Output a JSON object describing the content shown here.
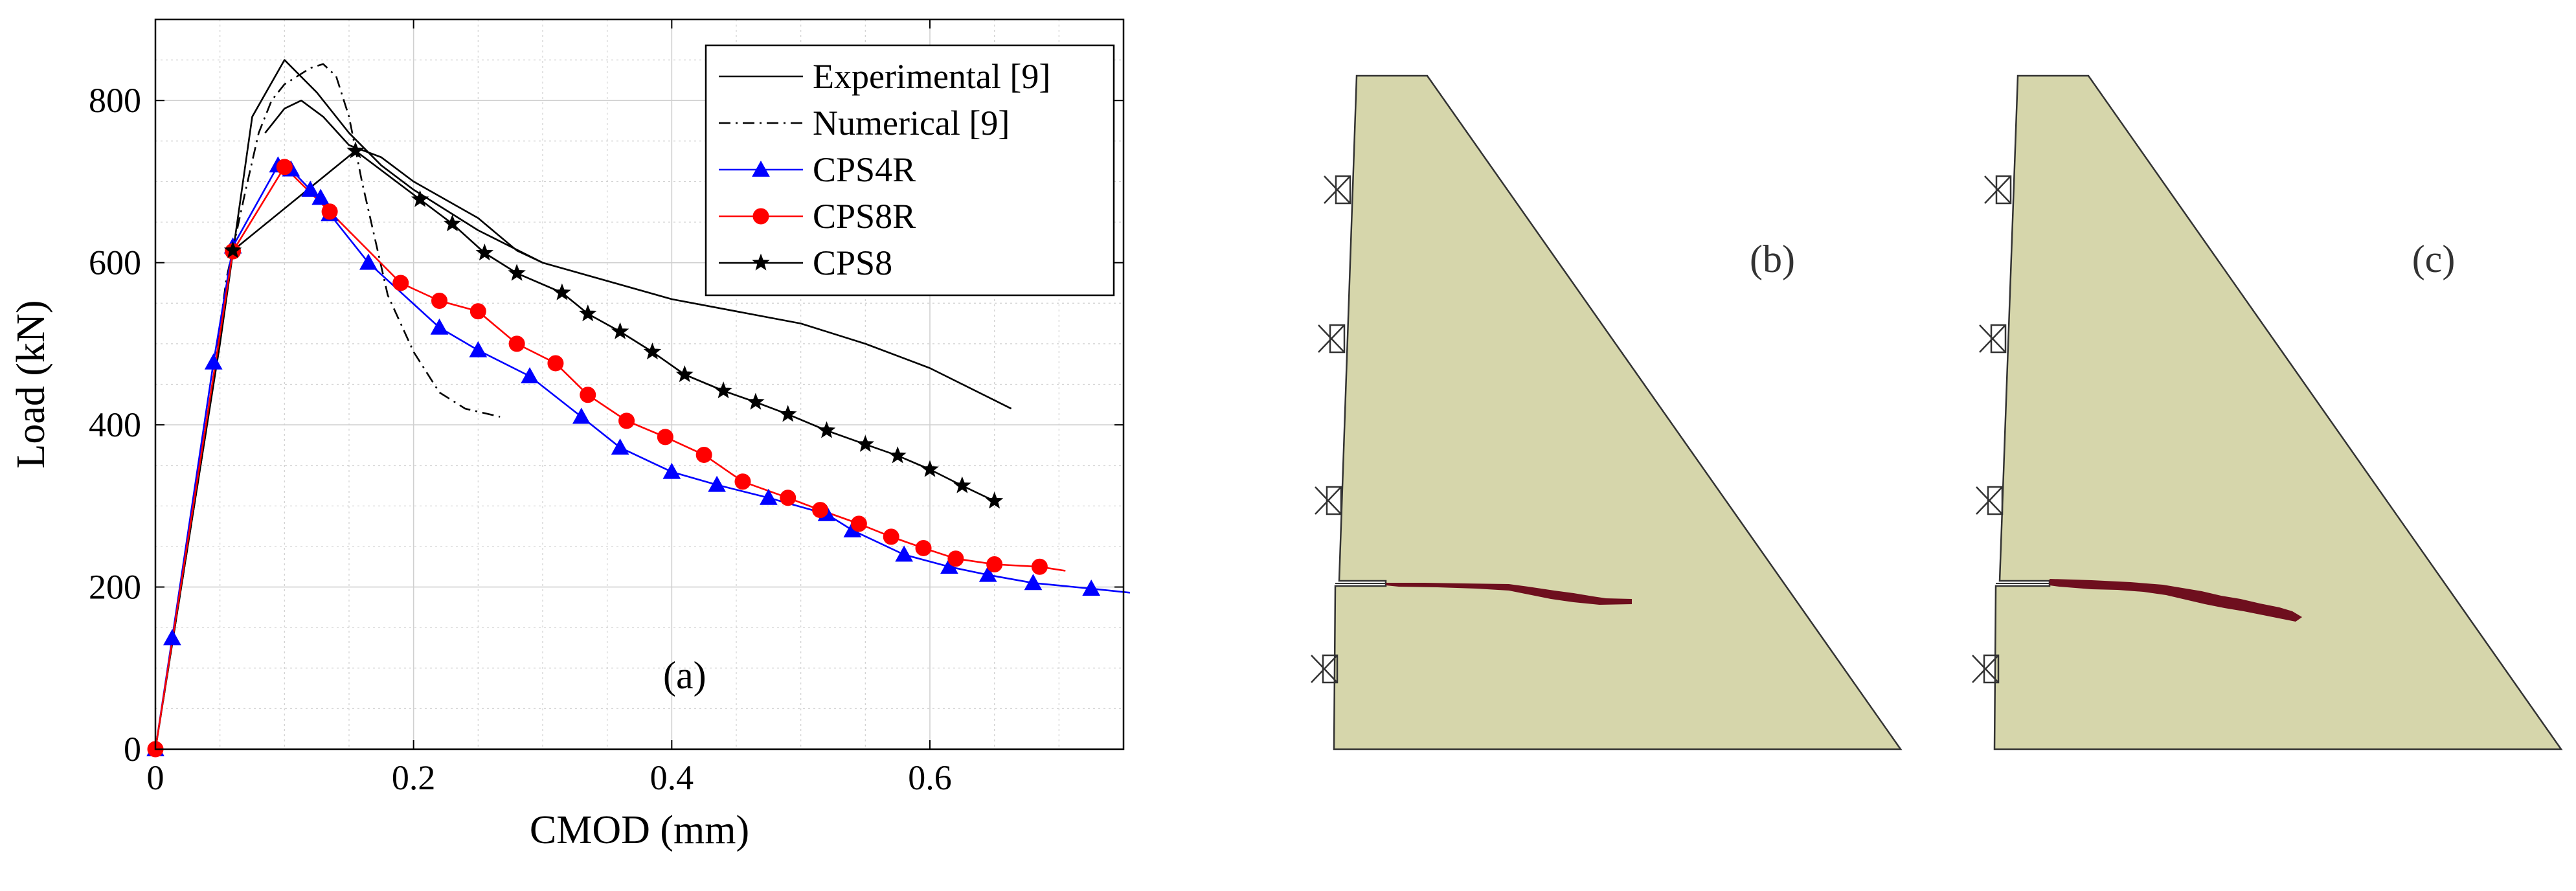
{
  "chart_data": {
    "type": "line",
    "panel_label": "(a)",
    "xlabel": "CMOD (mm)",
    "ylabel": "Load (kN)",
    "xlim": [
      0,
      0.75
    ],
    "ylim": [
      0,
      900
    ],
    "grid": true,
    "minor_grid": true,
    "legend_position": "top-right",
    "x_major_ticks": [
      0,
      0.2,
      0.4,
      0.6
    ],
    "x_tick_labels": [
      "0",
      "0.2",
      "0.4",
      "0.6"
    ],
    "y_major_ticks": [
      0,
      200,
      400,
      600,
      800
    ],
    "y_tick_labels": [
      "0",
      "200",
      "400",
      "600",
      "800"
    ],
    "series": [
      {
        "name": "Experimental [9]",
        "color": "#000000",
        "dash": "solid",
        "marker": "none",
        "segments": [
          [
            [
              0,
              0
            ],
            [
              0.05,
              500
            ],
            [
              0.075,
              780
            ],
            [
              0.1,
              850
            ],
            [
              0.125,
              810
            ],
            [
              0.15,
              760
            ],
            [
              0.175,
              720
            ],
            [
              0.2,
              690
            ],
            [
              0.25,
              640
            ],
            [
              0.3,
              600
            ],
            [
              0.4,
              555
            ],
            [
              0.5,
              525
            ],
            [
              0.55,
              500
            ],
            [
              0.6,
              470
            ],
            [
              0.663,
              420
            ]
          ],
          [
            [
              0.085,
              760
            ],
            [
              0.1,
              790
            ],
            [
              0.113,
              800
            ],
            [
              0.13,
              780
            ],
            [
              0.15,
              745
            ],
            [
              0.175,
              730
            ],
            [
              0.2,
              700
            ],
            [
              0.25,
              655
            ],
            [
              0.28,
              615
            ],
            [
              0.3,
              600
            ]
          ]
        ]
      },
      {
        "name": "Numerical [9]",
        "color": "#000000",
        "dash": "dash-dot",
        "marker": "none",
        "segments": [
          [
            [
              0,
              0
            ],
            [
              0.02,
              200
            ],
            [
              0.04,
              400
            ],
            [
              0.055,
              580
            ],
            [
              0.07,
              690
            ],
            [
              0.08,
              760
            ],
            [
              0.09,
              800
            ],
            [
              0.1,
              820
            ],
            [
              0.11,
              830
            ],
            [
              0.12,
              840
            ],
            [
              0.13,
              845
            ],
            [
              0.14,
              830
            ],
            [
              0.15,
              780
            ],
            [
              0.16,
              700
            ],
            [
              0.17,
              630
            ],
            [
              0.18,
              560
            ],
            [
              0.2,
              490
            ],
            [
              0.22,
              440
            ],
            [
              0.24,
              420
            ],
            [
              0.267,
              410
            ]
          ]
        ]
      },
      {
        "name": "CPS4R",
        "color": "#0000ff",
        "dash": "solid",
        "marker": "triangle",
        "points": [
          [
            0,
            0
          ],
          [
            0.013,
            137
          ],
          [
            0.045,
            477
          ],
          [
            0.06,
            620
          ],
          [
            0.095,
            720
          ],
          [
            0.105,
            715
          ],
          [
            0.12,
            690
          ],
          [
            0.128,
            680
          ],
          [
            0.135,
            660
          ],
          [
            0.165,
            600
          ],
          [
            0.22,
            520
          ],
          [
            0.25,
            492
          ],
          [
            0.29,
            460
          ],
          [
            0.33,
            410
          ],
          [
            0.36,
            372
          ],
          [
            0.4,
            342
          ],
          [
            0.435,
            326
          ],
          [
            0.475,
            310
          ],
          [
            0.52,
            290
          ],
          [
            0.54,
            270
          ],
          [
            0.58,
            240
          ],
          [
            0.615,
            225
          ],
          [
            0.645,
            215
          ],
          [
            0.68,
            205
          ],
          [
            0.725,
            198
          ],
          [
            0.755,
            193
          ]
        ],
        "marker_points": [
          [
            0,
            0
          ],
          [
            0.013,
            137
          ],
          [
            0.045,
            477
          ],
          [
            0.06,
            620
          ],
          [
            0.095,
            720
          ],
          [
            0.105,
            715
          ],
          [
            0.12,
            690
          ],
          [
            0.128,
            680
          ],
          [
            0.135,
            660
          ],
          [
            0.165,
            600
          ],
          [
            0.22,
            520
          ],
          [
            0.25,
            492
          ],
          [
            0.29,
            460
          ],
          [
            0.33,
            410
          ],
          [
            0.36,
            372
          ],
          [
            0.4,
            342
          ],
          [
            0.435,
            326
          ],
          [
            0.475,
            310
          ],
          [
            0.52,
            290
          ],
          [
            0.54,
            270
          ],
          [
            0.58,
            240
          ],
          [
            0.615,
            225
          ],
          [
            0.645,
            215
          ],
          [
            0.68,
            205
          ],
          [
            0.725,
            198
          ]
        ]
      },
      {
        "name": "CPS8R",
        "color": "#ff0000",
        "dash": "solid",
        "marker": "circle",
        "points": [
          [
            0,
            0
          ],
          [
            0.06,
            614
          ],
          [
            0.1,
            718
          ],
          [
            0.135,
            663
          ],
          [
            0.19,
            575
          ],
          [
            0.22,
            553
          ],
          [
            0.25,
            540
          ],
          [
            0.28,
            500
          ],
          [
            0.31,
            476
          ],
          [
            0.335,
            437
          ],
          [
            0.365,
            405
          ],
          [
            0.395,
            385
          ],
          [
            0.425,
            363
          ],
          [
            0.455,
            330
          ],
          [
            0.49,
            310
          ],
          [
            0.515,
            295
          ],
          [
            0.545,
            278
          ],
          [
            0.57,
            262
          ],
          [
            0.595,
            248
          ],
          [
            0.62,
            235
          ],
          [
            0.65,
            228
          ],
          [
            0.685,
            225
          ],
          [
            0.705,
            220
          ]
        ],
        "marker_points": [
          [
            0,
            0
          ],
          [
            0.06,
            614
          ],
          [
            0.1,
            718
          ],
          [
            0.135,
            663
          ],
          [
            0.19,
            575
          ],
          [
            0.22,
            553
          ],
          [
            0.25,
            540
          ],
          [
            0.28,
            500
          ],
          [
            0.31,
            476
          ],
          [
            0.335,
            437
          ],
          [
            0.365,
            405
          ],
          [
            0.395,
            385
          ],
          [
            0.425,
            363
          ],
          [
            0.455,
            330
          ],
          [
            0.49,
            310
          ],
          [
            0.515,
            295
          ],
          [
            0.545,
            278
          ],
          [
            0.57,
            262
          ],
          [
            0.595,
            248
          ],
          [
            0.62,
            235
          ],
          [
            0.65,
            228
          ],
          [
            0.685,
            225
          ]
        ]
      },
      {
        "name": "CPS8",
        "color": "#000000",
        "dash": "solid",
        "marker": "star",
        "points": [
          [
            0.06,
            615
          ],
          [
            0.155,
            738
          ],
          [
            0.205,
            678
          ],
          [
            0.23,
            648
          ],
          [
            0.255,
            612
          ],
          [
            0.28,
            587
          ],
          [
            0.315,
            563
          ],
          [
            0.335,
            537
          ],
          [
            0.36,
            515
          ],
          [
            0.385,
            490
          ],
          [
            0.41,
            462
          ],
          [
            0.44,
            442
          ],
          [
            0.465,
            428
          ],
          [
            0.49,
            413
          ],
          [
            0.52,
            393
          ],
          [
            0.55,
            376
          ],
          [
            0.575,
            362
          ],
          [
            0.6,
            345
          ],
          [
            0.625,
            325
          ],
          [
            0.65,
            306
          ]
        ],
        "marker_points": [
          [
            0.06,
            615
          ],
          [
            0.155,
            738
          ],
          [
            0.205,
            678
          ],
          [
            0.23,
            648
          ],
          [
            0.255,
            612
          ],
          [
            0.28,
            587
          ],
          [
            0.315,
            563
          ],
          [
            0.335,
            537
          ],
          [
            0.36,
            515
          ],
          [
            0.385,
            490
          ],
          [
            0.41,
            462
          ],
          [
            0.44,
            442
          ],
          [
            0.465,
            428
          ],
          [
            0.49,
            413
          ],
          [
            0.52,
            393
          ],
          [
            0.55,
            376
          ],
          [
            0.575,
            362
          ],
          [
            0.6,
            345
          ],
          [
            0.625,
            325
          ],
          [
            0.65,
            306
          ]
        ]
      }
    ]
  },
  "panels": {
    "b": {
      "label": "(b)"
    },
    "c": {
      "label": "(c)"
    }
  },
  "colors": {
    "dam_fill": "#d6d6ab",
    "dam_outline": "#333333",
    "crack": "#6e0f1e",
    "axis": "#000000",
    "grid": "#c8c8c8"
  }
}
